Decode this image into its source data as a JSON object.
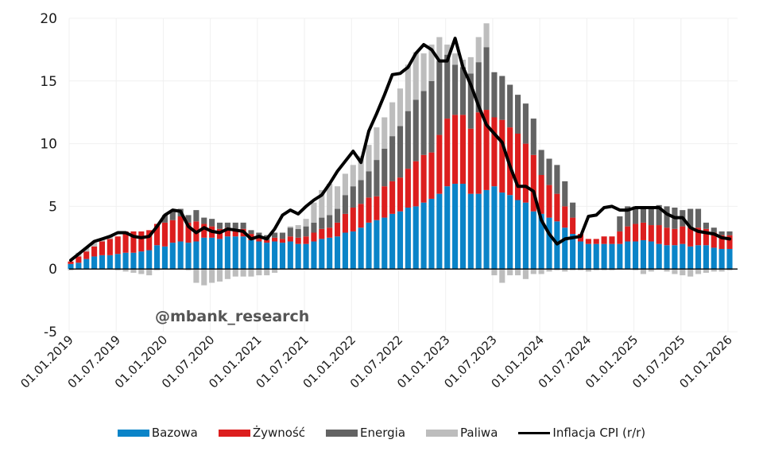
{
  "chart_data": {
    "type": "bar",
    "stacked": true,
    "title": "",
    "xlabel": "",
    "ylabel": "",
    "ylim": [
      -5,
      20
    ],
    "yticks": [
      "-5",
      "0",
      "5",
      "10",
      "15",
      "20"
    ],
    "ytick_values": [
      -5,
      0,
      5,
      10,
      15,
      20
    ],
    "grid": true,
    "legend_position": "bottom",
    "watermark": "@mbank_research",
    "xtick_labels": [
      "01.01.2019",
      "01.07.2019",
      "01.01.2020",
      "01.07.2020",
      "01.01.2021",
      "01.07.2021",
      "01.01.2022",
      "01.07.2022",
      "01.01.2023",
      "01.07.2023",
      "01.01.2024",
      "01.07.2024",
      "01.01.2025",
      "01.07.2025",
      "01.01.2026"
    ],
    "x_start": "01.2019",
    "x_months": 85,
    "colors": {
      "Bazowa": "#0a84c8",
      "Żywność": "#dc1e1e",
      "Energia": "#636363",
      "Paliwa": "#bdbdbd",
      "Inflacja CPI (r/r)": "#000000"
    },
    "series": [
      {
        "name": "Bazowa",
        "values": [
          0.4,
          0.5,
          0.8,
          1.0,
          1.1,
          1.1,
          1.2,
          1.3,
          1.3,
          1.4,
          1.5,
          1.9,
          1.8,
          2.1,
          2.2,
          2.1,
          2.2,
          2.5,
          2.5,
          2.4,
          2.6,
          2.6,
          2.6,
          2.3,
          2.2,
          2.1,
          2.2,
          2.1,
          2.2,
          2.0,
          2.0,
          2.2,
          2.4,
          2.5,
          2.6,
          2.9,
          3.0,
          3.3,
          3.7,
          3.9,
          4.1,
          4.4,
          4.6,
          4.9,
          5.0,
          5.3,
          5.6,
          6.0,
          6.6,
          6.8,
          6.8,
          6.0,
          6.0,
          6.3,
          6.6,
          6.1,
          5.9,
          5.5,
          5.3,
          4.6,
          4.4,
          4.1,
          3.8,
          3.3,
          2.8,
          2.2,
          2.0,
          2.0,
          2.0,
          2.0,
          2.0,
          2.2,
          2.2,
          2.3,
          2.2,
          2.0,
          1.9,
          1.9,
          2.0,
          1.8,
          1.9,
          1.9,
          1.7,
          1.6,
          1.6
        ]
      },
      {
        "name": "Żywność",
        "values": [
          0.2,
          0.5,
          0.6,
          0.8,
          1.1,
          1.3,
          1.4,
          1.7,
          1.7,
          1.6,
          1.6,
          1.7,
          1.9,
          1.8,
          2.0,
          1.6,
          1.6,
          1.1,
          0.9,
          0.8,
          0.7,
          0.6,
          0.6,
          0.5,
          0.3,
          0.2,
          0.3,
          0.3,
          0.4,
          0.5,
          0.6,
          0.7,
          0.8,
          0.8,
          1.1,
          1.5,
          1.9,
          1.9,
          2.0,
          1.9,
          2.5,
          2.6,
          2.7,
          3.1,
          3.6,
          3.8,
          3.7,
          4.7,
          5.4,
          5.5,
          5.5,
          5.2,
          6.5,
          6.4,
          5.5,
          5.8,
          5.4,
          5.3,
          4.7,
          4.5,
          3.1,
          2.6,
          2.2,
          1.7,
          1.3,
          0.6,
          0.4,
          0.4,
          0.6,
          0.6,
          1.0,
          1.2,
          1.4,
          1.4,
          1.3,
          1.5,
          1.4,
          1.3,
          1.4,
          1.5,
          1.4,
          1.3,
          1.2,
          1.1,
          1.1
        ]
      },
      {
        "name": "Energia",
        "values": [
          0.0,
          0.0,
          0.0,
          0.0,
          0.0,
          0.0,
          0.0,
          0.0,
          0.0,
          0.0,
          0.0,
          0.0,
          0.6,
          0.8,
          0.6,
          0.6,
          0.9,
          0.5,
          0.6,
          0.5,
          0.4,
          0.5,
          0.5,
          0.3,
          0.4,
          0.4,
          0.4,
          0.5,
          0.7,
          0.7,
          0.8,
          0.8,
          0.9,
          1.0,
          1.1,
          1.5,
          1.7,
          1.9,
          2.1,
          2.9,
          3.0,
          3.6,
          4.1,
          4.6,
          4.9,
          5.1,
          5.7,
          5.9,
          5.1,
          4.0,
          3.8,
          4.4,
          4.0,
          5.0,
          3.6,
          3.5,
          3.4,
          3.1,
          3.2,
          2.9,
          2.0,
          2.1,
          2.3,
          2.0,
          1.2,
          0.0,
          0.0,
          0.0,
          0.0,
          0.0,
          1.2,
          1.6,
          1.4,
          1.3,
          1.5,
          1.6,
          1.7,
          1.7,
          1.3,
          1.5,
          1.5,
          0.5,
          0.4,
          0.3,
          0.3
        ]
      },
      {
        "name": "Paliwa",
        "values": [
          -0.1,
          0.3,
          0.3,
          0.3,
          0.2,
          0.2,
          -0.1,
          -0.2,
          -0.3,
          -0.4,
          -0.5,
          -0.1,
          0.0,
          0.0,
          0.0,
          -0.1,
          -1.1,
          -1.3,
          -1.1,
          -1.0,
          -0.8,
          -0.6,
          -0.6,
          -0.6,
          -0.5,
          -0.5,
          -0.3,
          0.0,
          0.1,
          0.3,
          0.6,
          1.6,
          2.2,
          2.5,
          1.8,
          1.7,
          1.7,
          1.9,
          2.1,
          2.6,
          2.5,
          2.7,
          3.0,
          3.7,
          3.8,
          3.0,
          2.9,
          1.9,
          0.8,
          0.9,
          0.6,
          1.3,
          2.0,
          1.9,
          -0.5,
          -1.1,
          -0.5,
          -0.5,
          -0.8,
          -0.4,
          -0.4,
          -0.2,
          -0.1,
          -0.2,
          -0.1,
          -0.1,
          -0.2,
          -0.1,
          -0.1,
          -0.1,
          0.0,
          0.0,
          -0.1,
          -0.4,
          -0.2,
          0.0,
          -0.2,
          -0.4,
          -0.5,
          -0.6,
          -0.4,
          -0.3,
          -0.2,
          -0.2,
          -0.1
        ]
      }
    ],
    "line": {
      "name": "Inflacja CPI (r/r)",
      "values": [
        0.7,
        1.2,
        1.7,
        2.2,
        2.4,
        2.6,
        2.9,
        2.9,
        2.6,
        2.5,
        2.6,
        3.4,
        4.3,
        4.7,
        4.6,
        3.4,
        2.9,
        3.3,
        3.0,
        2.9,
        3.2,
        3.1,
        3.0,
        2.4,
        2.6,
        2.4,
        3.2,
        4.3,
        4.7,
        4.4,
        5.0,
        5.5,
        5.9,
        6.8,
        7.8,
        8.6,
        9.4,
        8.5,
        11.0,
        12.4,
        13.9,
        15.5,
        15.6,
        16.1,
        17.2,
        17.9,
        17.5,
        16.6,
        16.6,
        18.4,
        16.1,
        14.7,
        13.0,
        11.5,
        10.8,
        10.1,
        8.2,
        6.6,
        6.6,
        6.2,
        3.9,
        2.8,
        2.0,
        2.4,
        2.5,
        2.6,
        4.2,
        4.3,
        4.9,
        5.0,
        4.7,
        4.7,
        4.9,
        4.9,
        4.9,
        4.9,
        4.4,
        4.1,
        4.1,
        3.3,
        3.0,
        2.9,
        2.8,
        2.5,
        2.4
      ]
    }
  },
  "legend": {
    "items": [
      "Bazowa",
      "Żywność",
      "Energia",
      "Paliwa",
      "Inflacja CPI (r/r)"
    ]
  }
}
